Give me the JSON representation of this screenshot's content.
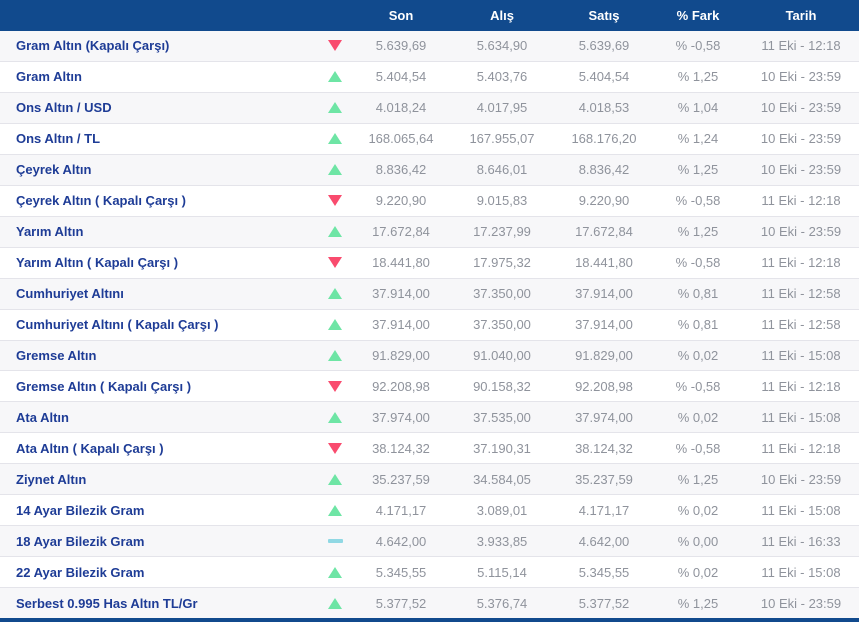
{
  "colors": {
    "header_bg": "#114a8d",
    "label_blue": "#1e3c96",
    "number_gray": "#8f939c",
    "row_alt": "#f7f7f9",
    "border": "#e4e4ea",
    "up_green": "#6ee5a5",
    "down_red": "#f94b6e",
    "flat_teal": "#90d8e4"
  },
  "table": {
    "columns": {
      "son": "Son",
      "alis": "Alış",
      "satis": "Satış",
      "fark": "% Fark",
      "tarih": "Tarih"
    },
    "rows": [
      {
        "name": "Gram Altın (Kapalı Çarşı)",
        "trend": "down",
        "son": "5.639,69",
        "alis": "5.634,90",
        "satis": "5.639,69",
        "fark": "% -0,58",
        "tarih": "11 Eki - 12:18"
      },
      {
        "name": "Gram Altın",
        "trend": "up",
        "son": "5.404,54",
        "alis": "5.403,76",
        "satis": "5.404,54",
        "fark": "% 1,25",
        "tarih": "10 Eki - 23:59"
      },
      {
        "name": "Ons Altın / USD",
        "trend": "up",
        "son": "4.018,24",
        "alis": "4.017,95",
        "satis": "4.018,53",
        "fark": "% 1,04",
        "tarih": "10 Eki - 23:59"
      },
      {
        "name": "Ons Altın / TL",
        "trend": "up",
        "son": "168.065,64",
        "alis": "167.955,07",
        "satis": "168.176,20",
        "fark": "% 1,24",
        "tarih": "10 Eki - 23:59"
      },
      {
        "name": "Çeyrek Altın",
        "trend": "up",
        "son": "8.836,42",
        "alis": "8.646,01",
        "satis": "8.836,42",
        "fark": "% 1,25",
        "tarih": "10 Eki - 23:59"
      },
      {
        "name": "Çeyrek Altın ( Kapalı Çarşı )",
        "trend": "down",
        "son": "9.220,90",
        "alis": "9.015,83",
        "satis": "9.220,90",
        "fark": "% -0,58",
        "tarih": "11 Eki - 12:18"
      },
      {
        "name": "Yarım Altın",
        "trend": "up",
        "son": "17.672,84",
        "alis": "17.237,99",
        "satis": "17.672,84",
        "fark": "% 1,25",
        "tarih": "10 Eki - 23:59"
      },
      {
        "name": "Yarım Altın ( Kapalı Çarşı )",
        "trend": "down",
        "son": "18.441,80",
        "alis": "17.975,32",
        "satis": "18.441,80",
        "fark": "% -0,58",
        "tarih": "11 Eki - 12:18"
      },
      {
        "name": "Cumhuriyet Altını",
        "trend": "up",
        "son": "37.914,00",
        "alis": "37.350,00",
        "satis": "37.914,00",
        "fark": "% 0,81",
        "tarih": "11 Eki - 12:58"
      },
      {
        "name": "Cumhuriyet Altını ( Kapalı Çarşı )",
        "trend": "up",
        "son": "37.914,00",
        "alis": "37.350,00",
        "satis": "37.914,00",
        "fark": "% 0,81",
        "tarih": "11 Eki - 12:58"
      },
      {
        "name": "Gremse Altın",
        "trend": "up",
        "son": "91.829,00",
        "alis": "91.040,00",
        "satis": "91.829,00",
        "fark": "% 0,02",
        "tarih": "11 Eki - 15:08"
      },
      {
        "name": "Gremse Altın ( Kapalı Çarşı )",
        "trend": "down",
        "son": "92.208,98",
        "alis": "90.158,32",
        "satis": "92.208,98",
        "fark": "% -0,58",
        "tarih": "11 Eki - 12:18"
      },
      {
        "name": "Ata Altın",
        "trend": "up",
        "son": "37.974,00",
        "alis": "37.535,00",
        "satis": "37.974,00",
        "fark": "% 0,02",
        "tarih": "11 Eki - 15:08"
      },
      {
        "name": "Ata Altın ( Kapalı Çarşı )",
        "trend": "down",
        "son": "38.124,32",
        "alis": "37.190,31",
        "satis": "38.124,32",
        "fark": "% -0,58",
        "tarih": "11 Eki - 12:18"
      },
      {
        "name": "Ziynet Altın",
        "trend": "up",
        "son": "35.237,59",
        "alis": "34.584,05",
        "satis": "35.237,59",
        "fark": "% 1,25",
        "tarih": "10 Eki - 23:59"
      },
      {
        "name": "14 Ayar Bilezik Gram",
        "trend": "up",
        "son": "4.171,17",
        "alis": "3.089,01",
        "satis": "4.171,17",
        "fark": "% 0,02",
        "tarih": "11 Eki - 15:08"
      },
      {
        "name": "18 Ayar Bilezik Gram",
        "trend": "flat",
        "son": "4.642,00",
        "alis": "3.933,85",
        "satis": "4.642,00",
        "fark": "% 0,00",
        "tarih": "11 Eki - 16:33"
      },
      {
        "name": "22 Ayar Bilezik Gram",
        "trend": "up",
        "son": "5.345,55",
        "alis": "5.115,14",
        "satis": "5.345,55",
        "fark": "% 0,02",
        "tarih": "11 Eki - 15:08"
      },
      {
        "name": "Serbest 0.995 Has Altın TL/Gr",
        "trend": "up",
        "son": "5.377,52",
        "alis": "5.376,74",
        "satis": "5.377,52",
        "fark": "% 1,25",
        "tarih": "10 Eki - 23:59"
      }
    ]
  }
}
